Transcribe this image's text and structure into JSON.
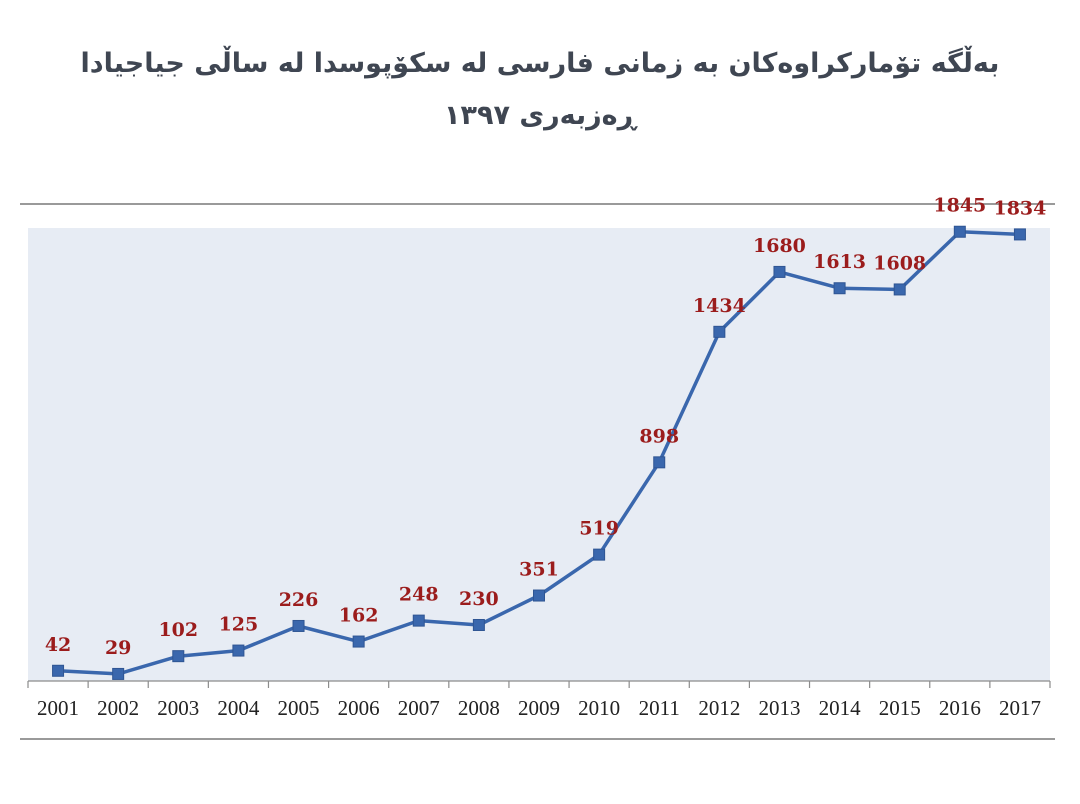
{
  "page": {
    "title_line1": "بەڵگە تۆمارکراوەکان بە زمانی فارسی لە سکۆپوسدا لە ساڵی جیاجیادا",
    "title_line2": "ڕەزبەری ١٣٩٧"
  },
  "colors": {
    "plot_background": "#e7ecf4",
    "line": "#3a67ad",
    "data_label": "#9b1c1c",
    "title": "#3f4652"
  },
  "chart_data": {
    "type": "line",
    "title": "",
    "xlabel": "",
    "ylabel": "",
    "categories": [
      "2001",
      "2002",
      "2003",
      "2004",
      "2005",
      "2006",
      "2007",
      "2008",
      "2009",
      "2010",
      "2011",
      "2012",
      "2013",
      "2014",
      "2015",
      "2016",
      "2017"
    ],
    "series": [
      {
        "values": [
          42,
          29,
          102,
          125,
          226,
          162,
          248,
          230,
          351,
          519,
          898,
          1434,
          1680,
          1613,
          1608,
          1845,
          1834
        ]
      }
    ],
    "data_labels": [
      "42",
      "29",
      "102",
      "125",
      "226",
      "162",
      "248",
      "230",
      "351",
      "519",
      "898",
      "1434",
      "1680",
      "1613",
      "1608",
      "1845",
      "1834"
    ],
    "ylim": [
      0,
      2000
    ],
    "marker": "square",
    "grid": false,
    "legend": "none"
  }
}
